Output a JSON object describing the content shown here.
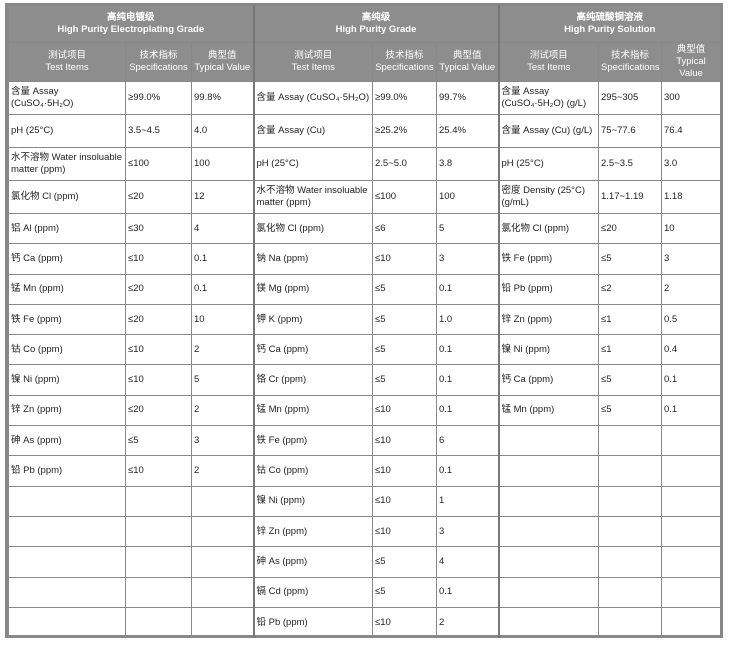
{
  "groups": [
    {
      "cn": "高纯电镀级",
      "en": "High Purity Electroplating Grade"
    },
    {
      "cn": "高纯级",
      "en": "High Purity Grade"
    },
    {
      "cn": "高纯硫酸铜溶液",
      "en": "High Purity Solution"
    }
  ],
  "columns": {
    "test_items": {
      "cn": "测试项目",
      "en": "Test Items"
    },
    "specifications": {
      "cn": "技术指标",
      "en": "Specifications"
    },
    "typical_value": {
      "cn": "典型值",
      "en": "Typical Value"
    }
  },
  "rows": [
    [
      [
        "含量 Assay (CuSO₄·5H₂O)",
        "≥99.0%",
        "99.8%"
      ],
      [
        "含量 Assay (CuSO₄·5H₂O)",
        "≥99.0%",
        "99.7%"
      ],
      [
        "含量 Assay (CuSO₄·5H₂O) (g/L)",
        "295~305",
        "300"
      ]
    ],
    [
      [
        "pH (25°C)",
        "3.5~4.5",
        "4.0"
      ],
      [
        "含量 Assay (Cu)",
        "≥25.2%",
        "25.4%"
      ],
      [
        "含量 Assay (Cu) (g/L)",
        "75~77.6",
        "76.4"
      ]
    ],
    [
      [
        "水不溶物 Water insoluable matter (ppm)",
        "≤100",
        "100"
      ],
      [
        "pH (25°C)",
        "2.5~5.0",
        "3.8"
      ],
      [
        "pH (25°C)",
        "2.5~3.5",
        "3.0"
      ]
    ],
    [
      [
        "氯化物 Cl (ppm)",
        "≤20",
        "12"
      ],
      [
        "水不溶物 Water insoluable matter (ppm)",
        "≤100",
        "100"
      ],
      [
        "密度 Density (25°C) (g/mL)",
        "1.17~1.19",
        "1.18"
      ]
    ],
    [
      [
        "铝 Al (ppm)",
        "≤30",
        "4"
      ],
      [
        "氯化物 Cl (ppm)",
        "≤6",
        "5"
      ],
      [
        "氯化物 Cl (ppm)",
        "≤20",
        "10"
      ]
    ],
    [
      [
        "钙 Ca (ppm)",
        "≤10",
        "0.1"
      ],
      [
        "钠 Na (ppm)",
        "≤10",
        "3"
      ],
      [
        "铁 Fe (ppm)",
        "≤5",
        "3"
      ]
    ],
    [
      [
        "锰 Mn (ppm)",
        "≤20",
        "0.1"
      ],
      [
        "镁 Mg (ppm)",
        "≤5",
        "0.1"
      ],
      [
        "铅 Pb (ppm)",
        "≤2",
        "2"
      ]
    ],
    [
      [
        "铁 Fe (ppm)",
        "≤20",
        "10"
      ],
      [
        "钾 K (ppm)",
        "≤5",
        "1.0"
      ],
      [
        "锌 Zn (ppm)",
        "≤1",
        "0.5"
      ]
    ],
    [
      [
        "钴 Co (ppm)",
        "≤10",
        "2"
      ],
      [
        "钙 Ca (ppm)",
        "≤5",
        "0.1"
      ],
      [
        "镍 Ni (ppm)",
        "≤1",
        "0.4"
      ]
    ],
    [
      [
        "镍 Ni (ppm)",
        "≤10",
        "5"
      ],
      [
        "铬 Cr (ppm)",
        "≤5",
        "0.1"
      ],
      [
        "钙 Ca (ppm)",
        "≤5",
        "0.1"
      ]
    ],
    [
      [
        "锌 Zn (ppm)",
        "≤20",
        "2"
      ],
      [
        "锰 Mn (ppm)",
        "≤10",
        "0.1"
      ],
      [
        "锰 Mn (ppm)",
        "≤5",
        "0.1"
      ]
    ],
    [
      [
        "砷 As (ppm)",
        "≤5",
        "3"
      ],
      [
        "铁 Fe (ppm)",
        "≤10",
        "6"
      ],
      [
        "",
        "",
        ""
      ]
    ],
    [
      [
        "铅 Pb (ppm)",
        "≤10",
        "2"
      ],
      [
        "钴 Co (ppm)",
        "≤10",
        "0.1"
      ],
      [
        "",
        "",
        ""
      ]
    ],
    [
      [
        "",
        "",
        ""
      ],
      [
        "镍 Ni (ppm)",
        "≤10",
        "1"
      ],
      [
        "",
        "",
        ""
      ]
    ],
    [
      [
        "",
        "",
        ""
      ],
      [
        "锌 Zn (ppm)",
        "≤10",
        "3"
      ],
      [
        "",
        "",
        ""
      ]
    ],
    [
      [
        "",
        "",
        ""
      ],
      [
        "砷 As (ppm)",
        "≤5",
        "4"
      ],
      [
        "",
        "",
        ""
      ]
    ],
    [
      [
        "",
        "",
        ""
      ],
      [
        "镉 Cd (ppm)",
        "≤5",
        "0.1"
      ],
      [
        "",
        "",
        ""
      ]
    ],
    [
      [
        "",
        "",
        ""
      ],
      [
        "铅 Pb (ppm)",
        "≤10",
        "2"
      ],
      [
        "",
        "",
        ""
      ]
    ]
  ],
  "colors": {
    "header_bg": "#8d8d8d",
    "header_text": "#ffffff",
    "border": "#888888"
  }
}
